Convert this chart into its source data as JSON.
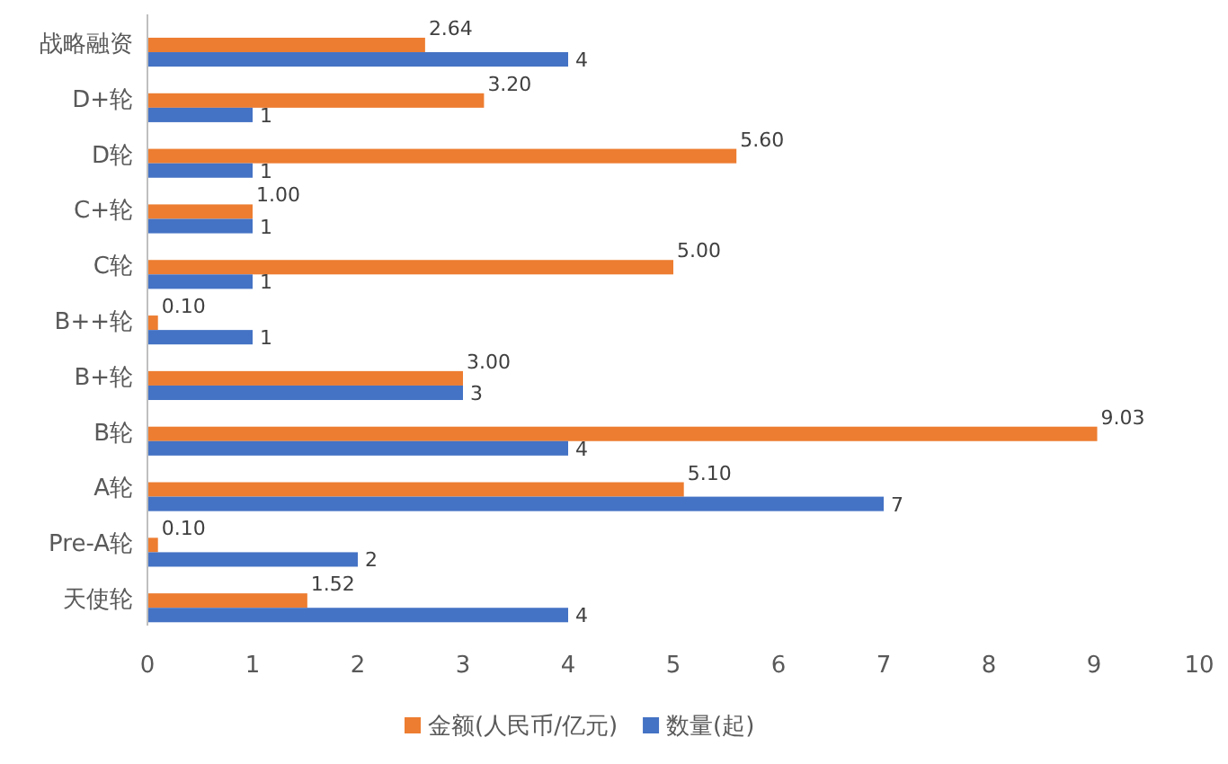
{
  "chart_data": {
    "type": "bar",
    "orientation": "horizontal",
    "categories": [
      "战略融资",
      "D+轮",
      "D轮",
      "C+轮",
      "C轮",
      "B++轮",
      "B+轮",
      "B轮",
      "A轮",
      "Pre-A轮",
      "天使轮"
    ],
    "series": [
      {
        "name": "金额(人民币/亿元)",
        "color": "#ed7d31",
        "values": [
          2.64,
          3.2,
          5.6,
          1.0,
          5.0,
          0.1,
          3.0,
          9.03,
          5.1,
          0.1,
          1.52
        ],
        "value_labels": [
          "2.64",
          "3.20",
          "5.60",
          "1.00",
          "5.00",
          "0.10",
          "3.00",
          "9.03",
          "5.10",
          "0.10",
          "1.52"
        ]
      },
      {
        "name": "数量(起)",
        "color": "#4472c4",
        "values": [
          4,
          1,
          1,
          1,
          1,
          1,
          3,
          4,
          7,
          2,
          4
        ],
        "value_labels": [
          "4",
          "1",
          "1",
          "1",
          "1",
          "1",
          "3",
          "4",
          "7",
          "2",
          "4"
        ]
      }
    ],
    "xlim": [
      0,
      10
    ],
    "xticks": [
      0,
      1,
      2,
      3,
      4,
      5,
      6,
      7,
      8,
      9,
      10
    ],
    "legend": "bottom"
  }
}
